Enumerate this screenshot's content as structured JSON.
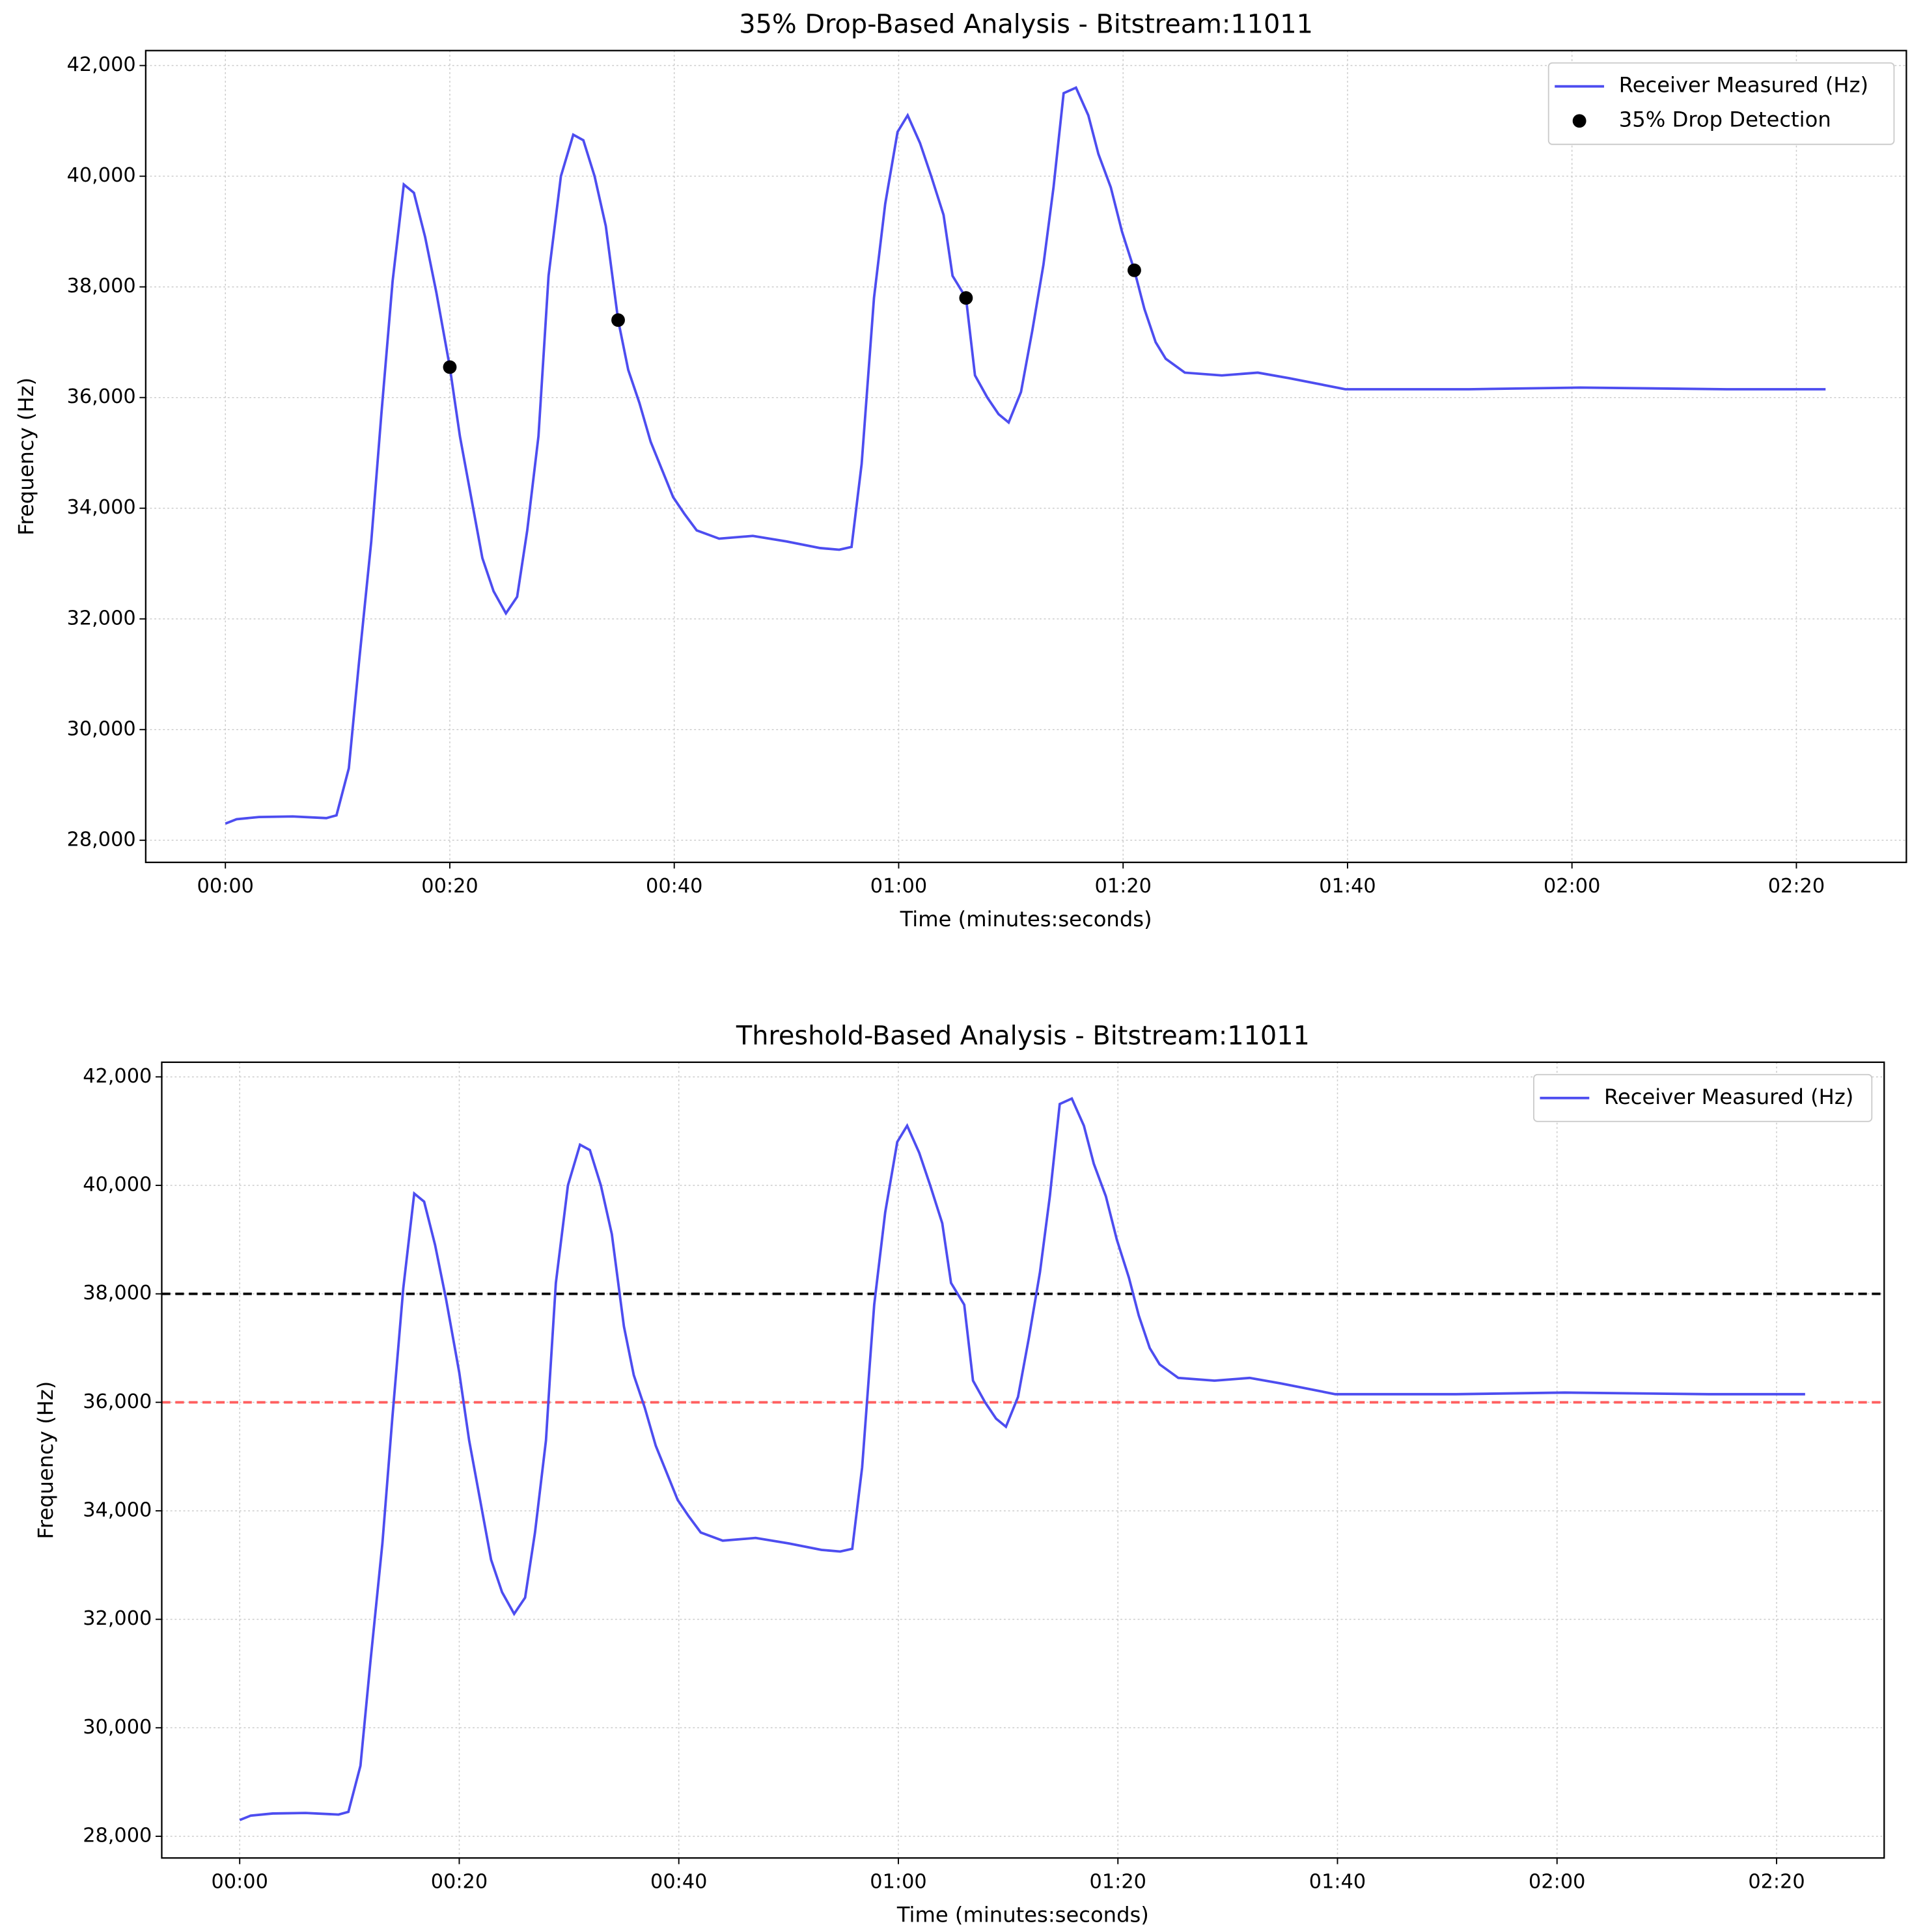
{
  "chart_data": [
    {
      "type": "line",
      "title": "35% Drop-Based Analysis - Bitstream:11011",
      "xlabel": "Time (minutes:seconds)",
      "ylabel": "Frequency (Hz)",
      "x": [
        0,
        1,
        3,
        6,
        9,
        9.9,
        11,
        11.9,
        13,
        13.9,
        14.9,
        15.9,
        16.8,
        17.8,
        18.8,
        20,
        20.9,
        21.9,
        22.9,
        23.9,
        25,
        26,
        26.9,
        27.9,
        28.8,
        29.9,
        31,
        31.9,
        32.9,
        33.9,
        35,
        35.9,
        36.9,
        37.9,
        38.9,
        39.9,
        40.9,
        42,
        44,
        47,
        50,
        53,
        54.7,
        55.8,
        56.7,
        57.8,
        58.8,
        59.9,
        60.8,
        61.9,
        62.9,
        64,
        64.8,
        66,
        66.8,
        67.9,
        68.9,
        69.8,
        70.9,
        71.9,
        72.9,
        73.8,
        74.7,
        75.8,
        76.9,
        77.8,
        78.9,
        79.9,
        81,
        81.9,
        82.9,
        83.8,
        85.5,
        88.8,
        92,
        94.8,
        99.8,
        110.8,
        120.7,
        133.8,
        142.6
      ],
      "series": [
        {
          "name": "Receiver Measured (Hz)",
          "color": "#4d4df0",
          "values": [
            28300,
            28380,
            28420,
            28430,
            28400,
            28450,
            29300,
            31200,
            33400,
            35700,
            38100,
            39850,
            39700,
            38900,
            37900,
            36550,
            35300,
            34200,
            33100,
            32500,
            32100,
            32400,
            33600,
            35300,
            38200,
            40000,
            40750,
            40650,
            40000,
            39100,
            37400,
            36500,
            35900,
            35200,
            34700,
            34200,
            33900,
            33600,
            33450,
            33500,
            33400,
            33280,
            33250,
            33300,
            34800,
            37800,
            39500,
            40800,
            41100,
            40600,
            40000,
            39300,
            38200,
            37800,
            36400,
            36000,
            35700,
            35550,
            36100,
            37200,
            38400,
            39800,
            41500,
            41600,
            41100,
            40400,
            39800,
            39000,
            38300,
            37600,
            37000,
            36700,
            36450,
            36400,
            36450,
            36350,
            36150,
            36150,
            36180,
            36150,
            36150
          ]
        },
        {
          "name": "35% Drop Detection",
          "type": "scatter",
          "color": "#000000",
          "x": [
            20,
            35,
            66,
            81
          ],
          "values": [
            36550,
            37400,
            37800,
            38300
          ]
        }
      ],
      "xlim": [
        -7.1,
        149.8
      ],
      "ylim": [
        27600,
        42270
      ],
      "xticks": [
        {
          "value": 0,
          "label": "00:00"
        },
        {
          "value": 20,
          "label": "00:20"
        },
        {
          "value": 40,
          "label": "00:40"
        },
        {
          "value": 60,
          "label": "01:00"
        },
        {
          "value": 80,
          "label": "01:20"
        },
        {
          "value": 100,
          "label": "01:40"
        },
        {
          "value": 120,
          "label": "02:00"
        },
        {
          "value": 140,
          "label": "02:20"
        }
      ],
      "yticks": [
        {
          "value": 28000,
          "label": "28,000"
        },
        {
          "value": 30000,
          "label": "30,000"
        },
        {
          "value": 32000,
          "label": "32,000"
        },
        {
          "value": 34000,
          "label": "34,000"
        },
        {
          "value": 36000,
          "label": "36,000"
        },
        {
          "value": 38000,
          "label": "38,000"
        },
        {
          "value": 40000,
          "label": "40,000"
        },
        {
          "value": 42000,
          "label": "42,000"
        }
      ],
      "grid": true,
      "legend": "upper right"
    },
    {
      "type": "line",
      "title": "Threshold-Based Analysis - Bitstream:11011",
      "xlabel": "Time (minutes:seconds)",
      "ylabel": "Frequency (Hz)",
      "x": [
        0,
        1,
        3,
        6,
        9,
        9.9,
        11,
        11.9,
        13,
        13.9,
        14.9,
        15.9,
        16.8,
        17.8,
        18.8,
        20,
        20.9,
        21.9,
        22.9,
        23.9,
        25,
        26,
        26.9,
        27.9,
        28.8,
        29.9,
        31,
        31.9,
        32.9,
        33.9,
        35,
        35.9,
        36.9,
        37.9,
        38.9,
        39.9,
        40.9,
        42,
        44,
        47,
        50,
        53,
        54.7,
        55.8,
        56.7,
        57.8,
        58.8,
        59.9,
        60.8,
        61.9,
        62.9,
        64,
        64.8,
        66,
        66.8,
        67.9,
        68.9,
        69.8,
        70.9,
        71.9,
        72.9,
        73.8,
        74.7,
        75.8,
        76.9,
        77.8,
        78.9,
        79.9,
        81,
        81.9,
        82.9,
        83.8,
        85.5,
        88.8,
        92,
        94.8,
        99.8,
        110.8,
        120.7,
        133.8,
        142.6
      ],
      "series": [
        {
          "name": "Receiver Measured (Hz)",
          "color": "#4d4df0",
          "values": [
            28300,
            28380,
            28420,
            28430,
            28400,
            28450,
            29300,
            31200,
            33400,
            35700,
            38100,
            39850,
            39700,
            38900,
            37900,
            36550,
            35300,
            34200,
            33100,
            32500,
            32100,
            32400,
            33600,
            35300,
            38200,
            40000,
            40750,
            40650,
            40000,
            39100,
            37400,
            36500,
            35900,
            35200,
            34700,
            34200,
            33900,
            33600,
            33450,
            33500,
            33400,
            33280,
            33250,
            33300,
            34800,
            37800,
            39500,
            40800,
            41100,
            40600,
            40000,
            39300,
            38200,
            37800,
            36400,
            36000,
            35700,
            35550,
            36100,
            37200,
            38400,
            39800,
            41500,
            41600,
            41100,
            40400,
            39800,
            39000,
            38300,
            37600,
            37000,
            36700,
            36450,
            36400,
            36450,
            36350,
            36150,
            36150,
            36180,
            36150,
            36150
          ]
        }
      ],
      "hlines": [
        {
          "value": 38000,
          "color": "#000000"
        },
        {
          "value": 36000,
          "color": "#ff6060"
        }
      ],
      "xlim": [
        -7.1,
        149.8
      ],
      "ylim": [
        27600,
        42270
      ],
      "xticks": [
        {
          "value": 0,
          "label": "00:00"
        },
        {
          "value": 20,
          "label": "00:20"
        },
        {
          "value": 40,
          "label": "00:40"
        },
        {
          "value": 60,
          "label": "01:00"
        },
        {
          "value": 80,
          "label": "01:20"
        },
        {
          "value": 100,
          "label": "01:40"
        },
        {
          "value": 120,
          "label": "02:00"
        },
        {
          "value": 140,
          "label": "02:20"
        }
      ],
      "yticks": [
        {
          "value": 28000,
          "label": "28,000"
        },
        {
          "value": 30000,
          "label": "30,000"
        },
        {
          "value": 32000,
          "label": "32,000"
        },
        {
          "value": 34000,
          "label": "34,000"
        },
        {
          "value": 36000,
          "label": "36,000"
        },
        {
          "value": 38000,
          "label": "38,000"
        },
        {
          "value": 40000,
          "label": "40,000"
        },
        {
          "value": 42000,
          "label": "42,000"
        }
      ],
      "grid": true,
      "legend": "upper right"
    }
  ]
}
